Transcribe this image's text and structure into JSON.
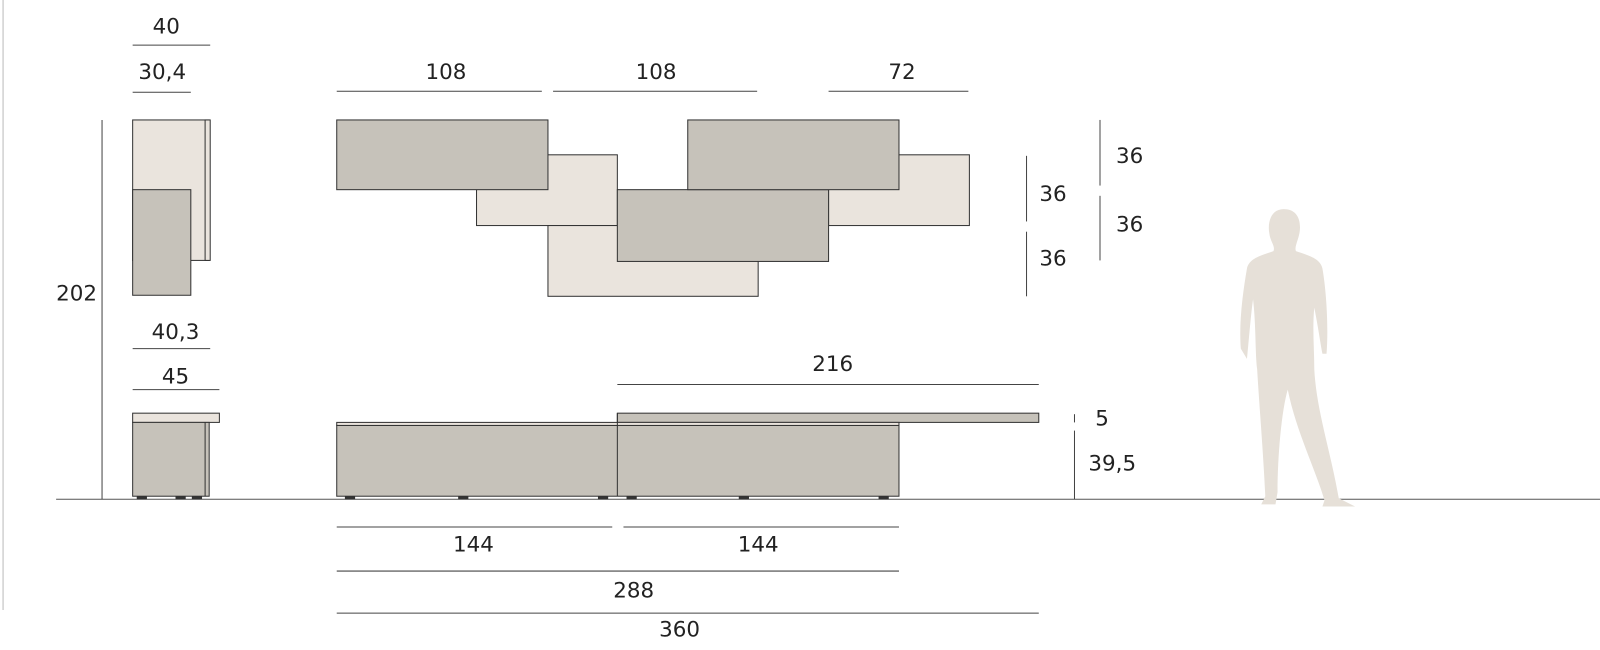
{
  "dimensions": [
    "40",
    "30,4",
    "202",
    "40,3",
    "45",
    "108",
    "108",
    "72",
    "36",
    "36",
    "36",
    "36",
    "216",
    "5",
    "39,5",
    "144",
    "144",
    "288",
    "360"
  ]
}
